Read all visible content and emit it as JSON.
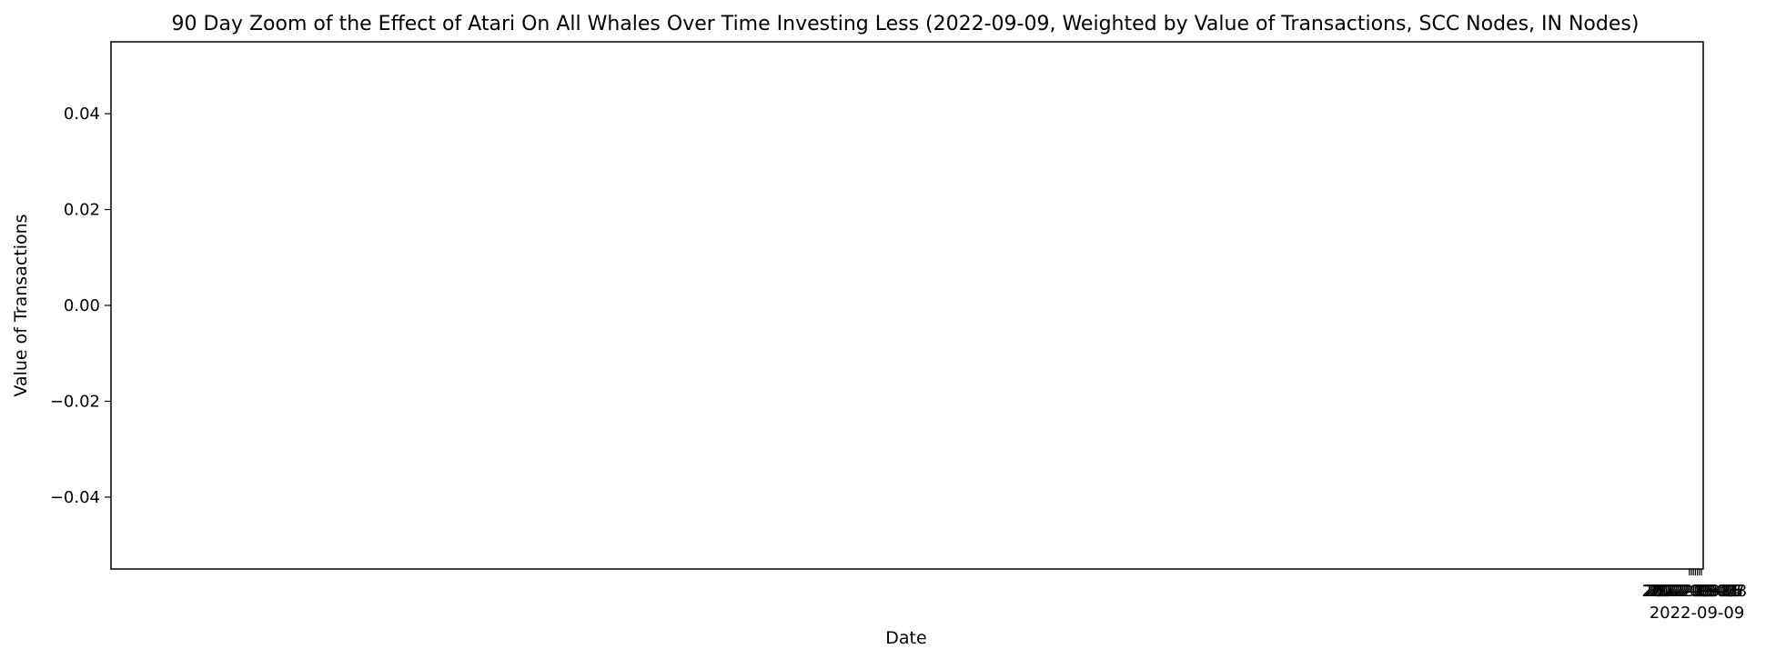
{
  "chart_data": {
    "type": "line",
    "title": "90 Day Zoom of the Effect of Atari On All Whales Over Time Investing Less (2022-09-09, Weighted by Value of Transactions, SCC Nodes, IN Nodes)",
    "xlabel": "Date",
    "ylabel": "Value of Transactions",
    "ylim": [
      -0.055,
      0.055
    ],
    "y_ticks": [
      0.04,
      0.02,
      0.0,
      -0.02,
      -0.04
    ],
    "y_tick_labels": [
      "0.04",
      "0.02",
      "0.00",
      "−0.02",
      "−0.04"
    ],
    "x_tick_labels": [
      "2022-09-03",
      "2022-09-04",
      "2022-09-05",
      "2022-09-06",
      "2022-09-07",
      "2022-09-08"
    ],
    "x_highlight_label": "2022-09-09",
    "series": [],
    "grid": false,
    "legend": "none"
  }
}
